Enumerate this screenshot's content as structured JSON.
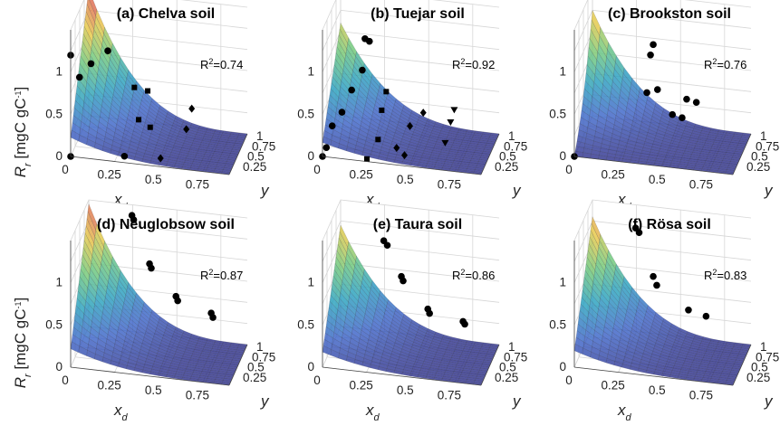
{
  "chart_data": [
    {
      "type": "surface",
      "title": "(a) Chelva soil",
      "zlabel": "R_r [mgC gC^-1]",
      "xlabel": "x_d",
      "ylabel": "y",
      "zticks": [
        "0",
        "0.5",
        "1"
      ],
      "xticks": [
        "0",
        "0.25",
        "0.5",
        "0.75"
      ],
      "yticks": [
        "0.25",
        "0.5",
        "0.75",
        "1"
      ],
      "xlim": [
        0,
        0.9
      ],
      "ylim": [
        0,
        1
      ],
      "zlim": [
        0,
        1.5
      ],
      "r2": "0.74",
      "surface_peak": 1.5,
      "points": [
        {
          "x": 0.0,
          "y": 0.0,
          "z": 1.2,
          "marker": "circle"
        },
        {
          "x": 0.05,
          "y": 0.0,
          "z": 0.95,
          "marker": "circle"
        },
        {
          "x": 0.1,
          "y": 0.15,
          "z": 1.05,
          "marker": "circle"
        },
        {
          "x": 0.18,
          "y": 0.3,
          "z": 1.15,
          "marker": "circle"
        },
        {
          "x": 0.3,
          "y": 0.05,
          "z": 0.05,
          "marker": "circle"
        },
        {
          "x": 0.35,
          "y": 0.35,
          "z": 0.35,
          "marker": "square"
        },
        {
          "x": 0.3,
          "y": 0.6,
          "z": 0.6,
          "marker": "square"
        },
        {
          "x": 0.35,
          "y": 0.85,
          "z": 0.45,
          "marker": "square"
        },
        {
          "x": 0.4,
          "y": 0.5,
          "z": 0.2,
          "marker": "square"
        },
        {
          "x": 0.5,
          "y": 0.1,
          "z": 0.05,
          "marker": "diamond"
        },
        {
          "x": 0.6,
          "y": 0.55,
          "z": 0.2,
          "marker": "diamond"
        },
        {
          "x": 0.6,
          "y": 0.85,
          "z": 0.3,
          "marker": "diamond"
        },
        {
          "x": 0.0,
          "y": 0.0,
          "z": 0.0,
          "marker": "circle"
        }
      ]
    },
    {
      "type": "surface",
      "title": "(b) Tuejar soil",
      "zlabel": "",
      "xlabel": "x_d",
      "ylabel": "y",
      "zticks": [
        "0",
        "0.5",
        "1"
      ],
      "xticks": [
        "0",
        "0.25",
        "0.5",
        "0.75"
      ],
      "yticks": [
        "0.25",
        "0.5",
        "0.75",
        "1"
      ],
      "xlim": [
        0,
        0.9
      ],
      "ylim": [
        0,
        1
      ],
      "zlim": [
        0,
        1.5
      ],
      "r2": "0.92",
      "surface_peak": 1.1,
      "points": [
        {
          "x": 0.2,
          "y": 0.4,
          "z": 1.25,
          "marker": "circle"
        },
        {
          "x": 0.22,
          "y": 0.45,
          "z": 1.2,
          "marker": "circle"
        },
        {
          "x": 0.2,
          "y": 0.25,
          "z": 0.95,
          "marker": "circle"
        },
        {
          "x": 0.15,
          "y": 0.15,
          "z": 0.75,
          "marker": "circle"
        },
        {
          "x": 0.1,
          "y": 0.1,
          "z": 0.5,
          "marker": "circle"
        },
        {
          "x": 0.05,
          "y": 0.05,
          "z": 0.35,
          "marker": "circle"
        },
        {
          "x": 0.02,
          "y": 0.02,
          "z": 0.1,
          "marker": "circle"
        },
        {
          "x": 0.3,
          "y": 0.35,
          "z": 0.45,
          "marker": "square"
        },
        {
          "x": 0.3,
          "y": 0.15,
          "z": 0.2,
          "marker": "square"
        },
        {
          "x": 0.3,
          "y": 0.6,
          "z": 0.55,
          "marker": "square"
        },
        {
          "x": 0.25,
          "y": 0.02,
          "z": 0.02,
          "marker": "square"
        },
        {
          "x": 0.4,
          "y": 0.2,
          "z": 0.1,
          "marker": "diamond"
        },
        {
          "x": 0.45,
          "y": 0.45,
          "z": 0.25,
          "marker": "diamond"
        },
        {
          "x": 0.5,
          "y": 0.7,
          "z": 0.3,
          "marker": "diamond"
        },
        {
          "x": 0.45,
          "y": 0.15,
          "z": 0.05,
          "marker": "diamond"
        },
        {
          "x": 0.65,
          "y": 0.45,
          "z": 0.1,
          "marker": "triangle"
        },
        {
          "x": 0.65,
          "y": 0.75,
          "z": 0.2,
          "marker": "triangle"
        },
        {
          "x": 0.65,
          "y": 0.95,
          "z": 0.25,
          "marker": "triangle"
        },
        {
          "x": 0.0,
          "y": 0.0,
          "z": 0.0,
          "marker": "circle"
        }
      ]
    },
    {
      "type": "surface",
      "title": "(c) Brookston soil",
      "zlabel": "",
      "xlabel": "x_d",
      "ylabel": "y",
      "zticks": [
        "0",
        "0.5",
        "1"
      ],
      "xticks": [
        "0",
        "0.25",
        "0.5",
        "0.75"
      ],
      "yticks": [
        "0.25",
        "0.5",
        "0.75",
        "1"
      ],
      "xlim": [
        0,
        0.9
      ],
      "ylim": [
        0,
        1
      ],
      "zlim": [
        0,
        1.5
      ],
      "r2": "0.76",
      "surface_peak": 1.25,
      "points": [
        {
          "x": 0.35,
          "y": 0.8,
          "z": 0.9,
          "marker": "circle"
        },
        {
          "x": 0.35,
          "y": 0.95,
          "z": 0.95,
          "marker": "circle"
        },
        {
          "x": 0.35,
          "y": 0.6,
          "z": 0.55,
          "marker": "circle"
        },
        {
          "x": 0.4,
          "y": 0.7,
          "z": 0.55,
          "marker": "circle"
        },
        {
          "x": 0.5,
          "y": 0.55,
          "z": 0.35,
          "marker": "circle"
        },
        {
          "x": 0.55,
          "y": 0.6,
          "z": 0.3,
          "marker": "circle"
        },
        {
          "x": 0.55,
          "y": 0.85,
          "z": 0.4,
          "marker": "circle"
        },
        {
          "x": 0.6,
          "y": 0.9,
          "z": 0.35,
          "marker": "circle"
        },
        {
          "x": 0.0,
          "y": 0.0,
          "z": 0.0,
          "marker": "circle"
        }
      ]
    },
    {
      "type": "surface",
      "title": "(d) Neuglobsow soil",
      "zlabel": "R_r [mgC gC^-1]",
      "xlabel": "x_d",
      "ylabel": "y",
      "zticks": [
        "0",
        "0.5",
        "1"
      ],
      "xticks": [
        "0",
        "0.25",
        "0.5",
        "0.75"
      ],
      "yticks": [
        "0.25",
        "0.5",
        "0.75",
        "1"
      ],
      "xlim": [
        0,
        0.9
      ],
      "ylim": [
        0,
        1
      ],
      "zlim": [
        0,
        1.5
      ],
      "r2": "0.87",
      "surface_peak": 1.45,
      "points": [
        {
          "x": 0.25,
          "y": 0.95,
          "z": 1.4,
          "marker": "circle"
        },
        {
          "x": 0.26,
          "y": 0.95,
          "z": 1.35,
          "marker": "circle"
        },
        {
          "x": 0.35,
          "y": 0.95,
          "z": 0.85,
          "marker": "circle"
        },
        {
          "x": 0.36,
          "y": 0.95,
          "z": 0.8,
          "marker": "circle"
        },
        {
          "x": 0.5,
          "y": 0.95,
          "z": 0.5,
          "marker": "circle"
        },
        {
          "x": 0.51,
          "y": 0.95,
          "z": 0.45,
          "marker": "circle"
        },
        {
          "x": 0.7,
          "y": 0.95,
          "z": 0.35,
          "marker": "circle"
        },
        {
          "x": 0.71,
          "y": 0.95,
          "z": 0.3,
          "marker": "circle"
        }
      ]
    },
    {
      "type": "surface",
      "title": "(e) Taura soil",
      "zlabel": "",
      "xlabel": "x_d",
      "ylabel": "y",
      "zticks": [
        "0",
        "0.5",
        "1"
      ],
      "xticks": [
        "0",
        "0.25",
        "0.5",
        "0.75"
      ],
      "yticks": [
        "0.25",
        "0.5",
        "0.75",
        "1"
      ],
      "xlim": [
        0,
        0.9
      ],
      "ylim": [
        0,
        1
      ],
      "zlim": [
        0,
        1.5
      ],
      "r2": "0.86",
      "surface_peak": 1.2,
      "points": [
        {
          "x": 0.25,
          "y": 0.95,
          "z": 1.1,
          "marker": "circle"
        },
        {
          "x": 0.27,
          "y": 0.95,
          "z": 1.05,
          "marker": "circle"
        },
        {
          "x": 0.35,
          "y": 0.95,
          "z": 0.7,
          "marker": "circle"
        },
        {
          "x": 0.36,
          "y": 0.95,
          "z": 0.65,
          "marker": "circle"
        },
        {
          "x": 0.5,
          "y": 0.95,
          "z": 0.35,
          "marker": "circle"
        },
        {
          "x": 0.51,
          "y": 0.95,
          "z": 0.3,
          "marker": "circle"
        },
        {
          "x": 0.7,
          "y": 0.95,
          "z": 0.25,
          "marker": "circle"
        },
        {
          "x": 0.71,
          "y": 0.95,
          "z": 0.22,
          "marker": "circle"
        }
      ]
    },
    {
      "type": "surface",
      "title": "(f) Rösa soil",
      "zlabel": "",
      "xlabel": "x_d",
      "ylabel": "y",
      "zticks": [
        "0",
        "0.5",
        "1"
      ],
      "xticks": [
        "0",
        "0.25",
        "0.5",
        "0.75"
      ],
      "yticks": [
        "0.25",
        "0.5",
        "0.75",
        "1"
      ],
      "xlim": [
        0,
        0.9
      ],
      "ylim": [
        0,
        1
      ],
      "zlim": [
        0,
        1.5
      ],
      "r2": "0.83",
      "surface_peak": 1.3,
      "points": [
        {
          "x": 0.25,
          "y": 0.95,
          "z": 1.25,
          "marker": "circle"
        },
        {
          "x": 0.27,
          "y": 0.95,
          "z": 1.2,
          "marker": "circle"
        },
        {
          "x": 0.35,
          "y": 0.95,
          "z": 0.7,
          "marker": "circle"
        },
        {
          "x": 0.37,
          "y": 0.95,
          "z": 0.6,
          "marker": "circle"
        },
        {
          "x": 0.55,
          "y": 0.95,
          "z": 0.35,
          "marker": "circle"
        },
        {
          "x": 0.65,
          "y": 0.95,
          "z": 0.3,
          "marker": "circle"
        }
      ]
    }
  ]
}
